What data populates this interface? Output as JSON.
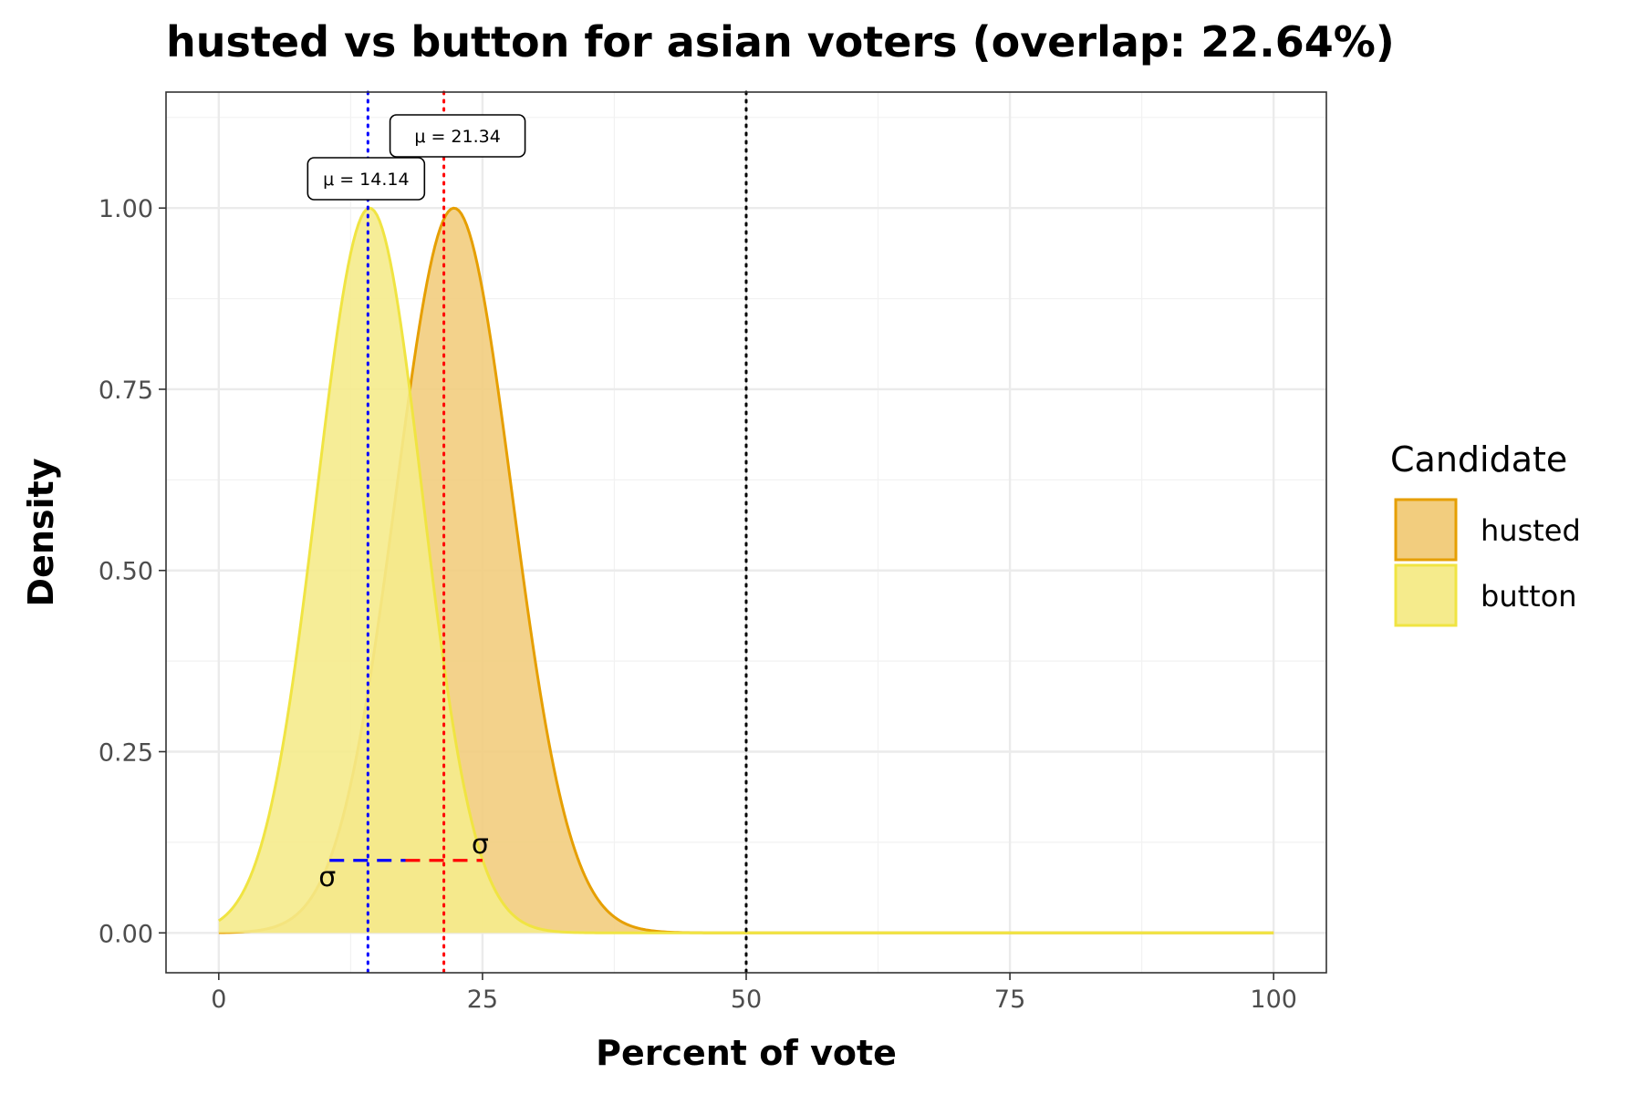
{
  "chart_data": {
    "type": "area",
    "title": "husted vs button for asian voters (overlap: 22.64%)",
    "xlabel": "Percent of vote",
    "ylabel": "Density",
    "xlim": [
      -5,
      105
    ],
    "ylim": [
      -0.055,
      1.16
    ],
    "x_ticks": [
      0,
      25,
      50,
      75,
      100
    ],
    "x_tick_labels": [
      "0",
      "25",
      "50",
      "75",
      "100"
    ],
    "y_ticks": [
      0,
      0.25,
      0.5,
      0.75,
      1.0
    ],
    "y_tick_labels": [
      "0.00",
      "0.25",
      "0.50",
      "0.75",
      "1.00"
    ],
    "grid": true,
    "legend": {
      "title": "Candidate",
      "placement": "right",
      "entries": [
        "husted",
        "button"
      ]
    },
    "series": [
      {
        "name": "husted",
        "peak_x": 22.3,
        "sd": 5.5,
        "mean": 21.34,
        "mean_label": "μ = 21.34",
        "fill": "#f2cd7e",
        "stroke": "#e69f00",
        "mean_line_color": "#ff0000",
        "sigma_range": [
          17.7,
          25.0
        ]
      },
      {
        "name": "button",
        "peak_x": 14.3,
        "sd": 5.0,
        "mean": 14.14,
        "mean_label": "μ = 14.14",
        "fill": "#f5eb8c",
        "stroke": "#f0e442",
        "mean_line_color": "#0000ff",
        "sigma_range": [
          10.5,
          17.7
        ]
      }
    ],
    "reference_line_x": 50,
    "sigma_level_y": 0.1,
    "sigma_symbol": "σ"
  }
}
